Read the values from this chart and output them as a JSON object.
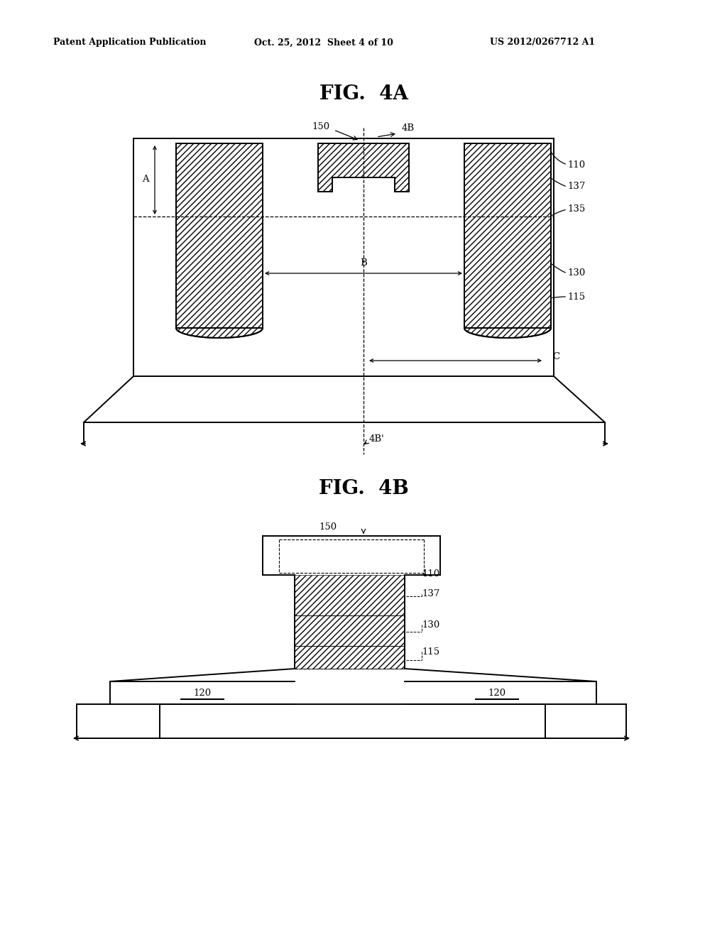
{
  "bg_color": "#ffffff",
  "header_left": "Patent Application Publication",
  "header_center": "Oct. 25, 2012  Sheet 4 of 10",
  "header_right": "US 2012/0267712 A1",
  "fig4A_title": "FIG.  4A",
  "fig4B_title": "FIG.  4B",
  "lc": "#000000"
}
